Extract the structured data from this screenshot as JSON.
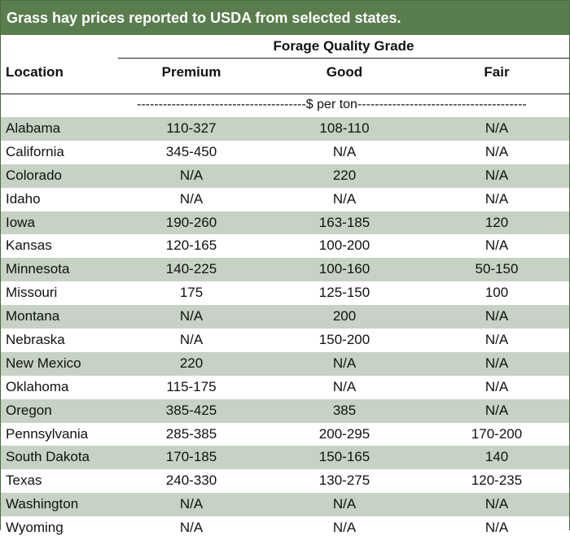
{
  "title": "Grass hay prices reported to USDA from selected states.",
  "header": {
    "group_label": "Forage Quality Grade",
    "location_label": "Location",
    "columns": [
      "Premium",
      "Good",
      "Fair"
    ]
  },
  "unit_row": "---------------------------------------$ per ton---------------------------------------",
  "colors": {
    "title_bar": "#5a7d4e",
    "row_shade": "#c6d2c3"
  },
  "rows": [
    {
      "location": "Alabama",
      "premium": "110-327",
      "good": "108-110",
      "fair": "N/A"
    },
    {
      "location": "California",
      "premium": "345-450",
      "good": "N/A",
      "fair": "N/A"
    },
    {
      "location": "Colorado",
      "premium": "N/A",
      "good": "220",
      "fair": "N/A"
    },
    {
      "location": "Idaho",
      "premium": "N/A",
      "good": "N/A",
      "fair": "N/A"
    },
    {
      "location": "Iowa",
      "premium": "190-260",
      "good": "163-185",
      "fair": "120"
    },
    {
      "location": "Kansas",
      "premium": "120-165",
      "good": "100-200",
      "fair": "N/A"
    },
    {
      "location": "Minnesota",
      "premium": "140-225",
      "good": "100-160",
      "fair": "50-150"
    },
    {
      "location": "Missouri",
      "premium": "175",
      "good": "125-150",
      "fair": "100"
    },
    {
      "location": "Montana",
      "premium": "N/A",
      "good": "200",
      "fair": "N/A"
    },
    {
      "location": "Nebraska",
      "premium": "N/A",
      "good": "150-200",
      "fair": "N/A"
    },
    {
      "location": "New Mexico",
      "premium": "220",
      "good": "N/A",
      "fair": "N/A"
    },
    {
      "location": "Oklahoma",
      "premium": "115-175",
      "good": "N/A",
      "fair": "N/A"
    },
    {
      "location": "Oregon",
      "premium": "385-425",
      "good": "385",
      "fair": "N/A"
    },
    {
      "location": "Pennsylvania",
      "premium": "285-385",
      "good": "200-295",
      "fair": "170-200"
    },
    {
      "location": "South Dakota",
      "premium": "170-185",
      "good": "150-165",
      "fair": "140"
    },
    {
      "location": "Texas",
      "premium": "240-330",
      "good": "130-275",
      "fair": "120-235"
    },
    {
      "location": "Washington",
      "premium": "N/A",
      "good": "N/A",
      "fair": "N/A"
    },
    {
      "location": "Wyoming",
      "premium": "N/A",
      "good": "N/A",
      "fair": "N/A"
    }
  ]
}
